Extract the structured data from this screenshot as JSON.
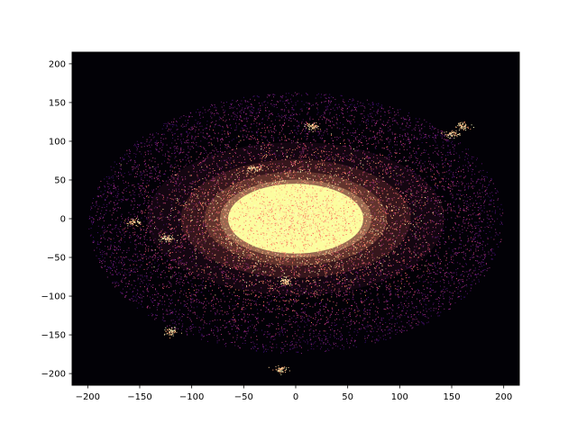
{
  "chart_data": {
    "type": "heatmap",
    "title": "",
    "xlabel": "",
    "ylabel": "",
    "colormap": "inferno",
    "background_color": "#020106",
    "xlim": [
      -215,
      215
    ],
    "ylim": [
      -215,
      215
    ],
    "x_ticks": [
      -200,
      -150,
      -100,
      -50,
      0,
      50,
      100,
      150,
      200
    ],
    "y_ticks": [
      -200,
      -150,
      -100,
      -50,
      0,
      50,
      100,
      150,
      200
    ],
    "grid": false,
    "legend": "none",
    "features": [
      {
        "kind": "core",
        "x": 0,
        "y": 0,
        "radius_x": 65,
        "radius_y": 45,
        "color": "#fbfd9f"
      },
      {
        "kind": "disk",
        "x": 0,
        "y": -5,
        "radius_x": 210,
        "radius_y": 210,
        "angle_deg": 15
      },
      {
        "kind": "knot",
        "x": 160,
        "y": 120
      },
      {
        "kind": "knot",
        "x": 150,
        "y": 110
      },
      {
        "kind": "knot",
        "x": -125,
        "y": -25
      },
      {
        "kind": "knot",
        "x": -120,
        "y": -145
      },
      {
        "kind": "knot",
        "x": -40,
        "y": 65
      },
      {
        "kind": "knot",
        "x": -15,
        "y": -195
      },
      {
        "kind": "knot",
        "x": 15,
        "y": 120
      },
      {
        "kind": "knot",
        "x": -10,
        "y": -80
      },
      {
        "kind": "knot",
        "x": -155,
        "y": -5
      }
    ]
  }
}
